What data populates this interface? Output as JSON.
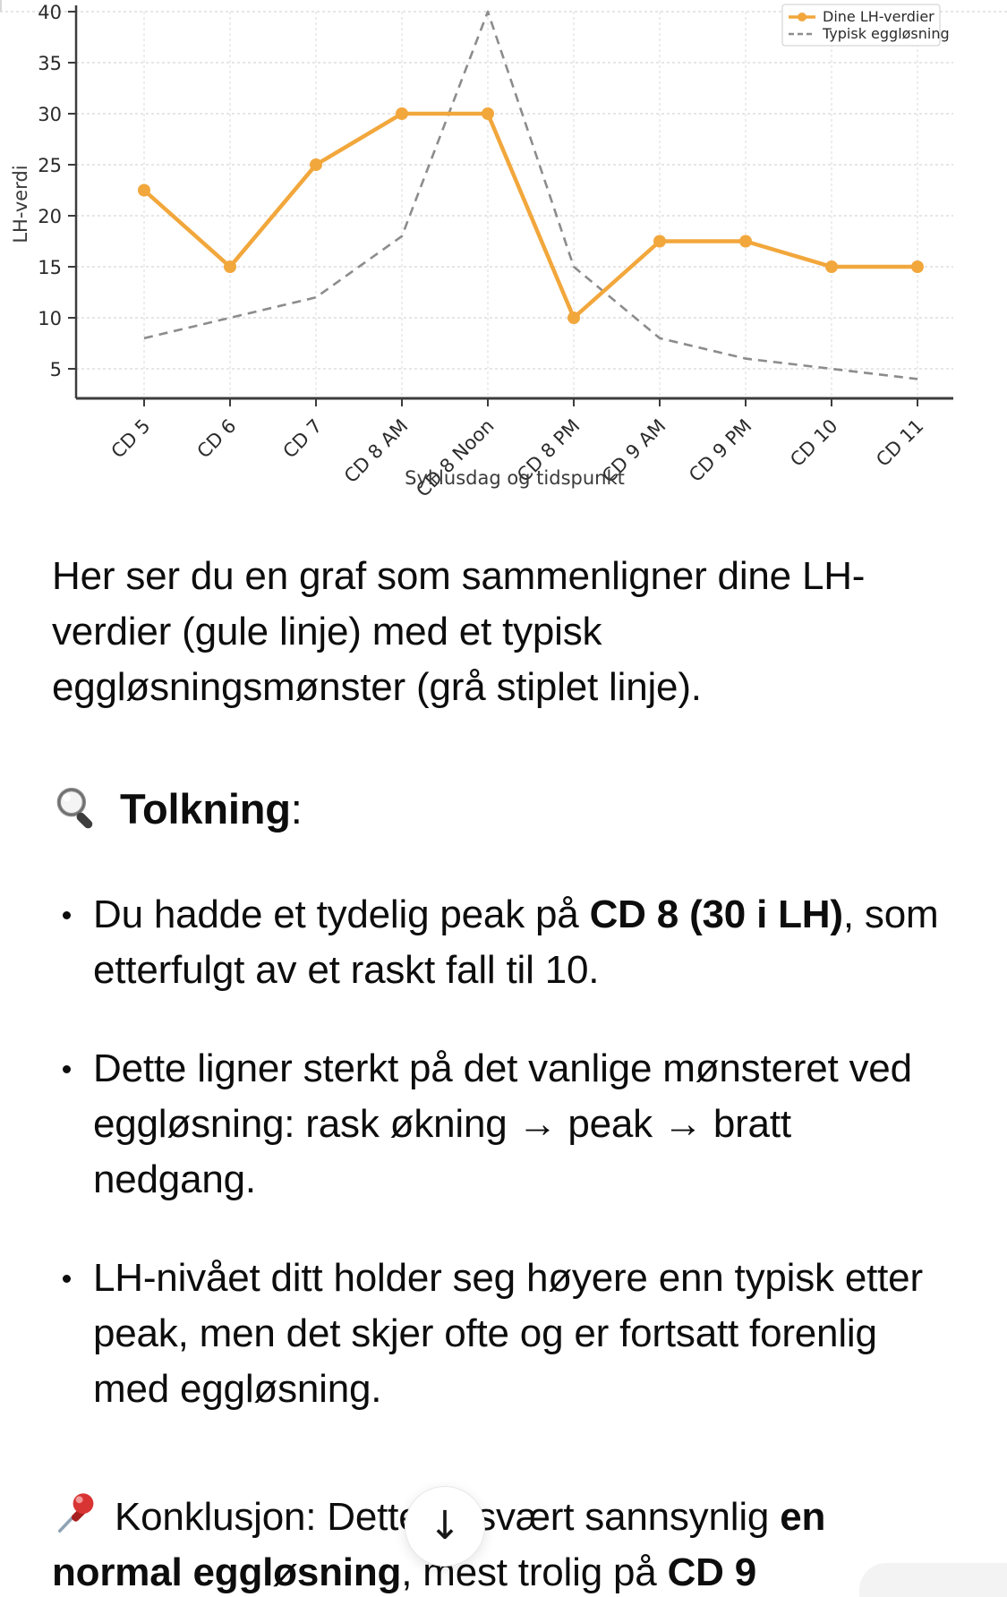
{
  "chart_data": {
    "type": "line",
    "categories": [
      "CD 5",
      "CD 6",
      "CD 7",
      "CD 8 AM",
      "CD 8 Noon",
      "CD 8 PM",
      "CD 9 AM",
      "CD 9 PM",
      "CD 10",
      "CD 11"
    ],
    "series": [
      {
        "name": "Dine LH-verdier",
        "values": [
          22.5,
          15,
          25,
          30,
          30,
          10,
          17.5,
          17.5,
          15,
          15
        ],
        "color": "#F2A73C",
        "dashed": false,
        "markers": true
      },
      {
        "name": "Typisk eggløsning",
        "values": [
          8,
          10,
          12,
          18,
          40,
          15,
          8,
          6,
          5,
          4
        ],
        "color": "#8C8C8C",
        "dashed": true,
        "markers": false
      }
    ],
    "xlabel": "Syklusdag og tidspunkt",
    "ylabel": "LH-verdi",
    "yticks": [
      5,
      10,
      15,
      20,
      25,
      30,
      35,
      40
    ],
    "ylim": [
      2,
      41
    ],
    "grid": true,
    "legend_position": "top-right",
    "colors": {
      "gridline": "#dedede",
      "vgridline": "#e3e3e3",
      "spine": "#3c3c3c",
      "legend_border": "#cccccc"
    }
  },
  "message": {
    "intro": "Her ser du en graf som sammenligner dine LH-verdier (gule linje) med et typisk eggløsningsmønster (grå stiplet linje).",
    "section_heading": {
      "icon": "magnifier",
      "title": "Tolkning",
      "colon": ":"
    },
    "bullets": [
      {
        "runs": [
          {
            "text": "Du hadde et tydelig peak på ",
            "bold": false
          },
          {
            "text": "CD 8 (30 i LH)",
            "bold": true
          },
          {
            "text": ", som etterfulgt av et raskt fall til 10.",
            "bold": false
          }
        ]
      },
      {
        "runs": [
          {
            "text": "Dette ligner sterkt på det vanlige mønsteret ved eggløsning: rask økning → peak → bratt nedgang.",
            "bold": false
          }
        ]
      },
      {
        "runs": [
          {
            "text": "LH-nivået ditt holder seg høyere enn typisk etter peak, men det skjer ofte og er fortsatt forenlig med eggløsning.",
            "bold": false
          }
        ]
      }
    ],
    "conclusion": {
      "icon": "pushpin",
      "runs": [
        {
          "text": "Konklusjon: Dette er svært sannsynlig ",
          "bold": false
        },
        {
          "text": "en normal eggløsning",
          "bold": true
        },
        {
          "text": ", mest trolig på ",
          "bold": false
        },
        {
          "text": "CD 9",
          "bold": true
        }
      ]
    }
  },
  "scroll_button": {
    "glyph": "↓"
  }
}
